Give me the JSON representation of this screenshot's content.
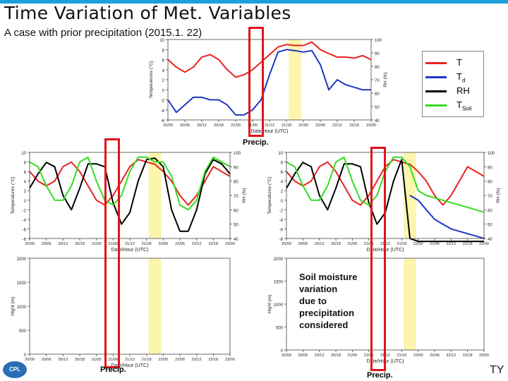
{
  "slide": {
    "title": "Time Variation of Met. Variables",
    "subtitle": "A case with prior precipitation (2015.1. 22)",
    "note": [
      "Soil moisture",
      "variation",
      "due to",
      "precipitation",
      "considered"
    ],
    "precip_label": "Precip.",
    "logo_text": "CPL",
    "corner_text": "TY"
  },
  "legend": {
    "items": [
      {
        "label": "T",
        "sub": "",
        "color": "#e8231f"
      },
      {
        "label": "T",
        "sub": "d",
        "color": "#1f36c4"
      },
      {
        "label": "RH",
        "sub": "",
        "color": "#000000"
      },
      {
        "label": "T",
        "sub": "Soil",
        "color": "#33dd22"
      }
    ]
  },
  "chart_data": [
    {
      "type": "line",
      "title": "top",
      "xlabel": "Date/Hour (UTC)",
      "ylabel": "Temperatures (°C)",
      "y2label": "RH (%)",
      "ylim": [
        -6,
        10
      ],
      "y2lim": [
        40,
        100
      ],
      "yticks": [
        -6,
        -4,
        -2,
        0,
        2,
        4,
        6,
        8,
        10
      ],
      "y2ticks": [
        40,
        50,
        60,
        70,
        80,
        90,
        100
      ],
      "xlim": [
        0,
        96
      ],
      "xticklabels": [
        "20/00",
        "20/06",
        "20/12",
        "20/18",
        "21/00",
        "21/06",
        "21/12",
        "21/18",
        "22/00",
        "22/06",
        "22/12",
        "22/18",
        "23/00"
      ],
      "precip_span": [
        57,
        63
      ],
      "series": [
        {
          "name": "T",
          "axis": "left",
          "color": "#e8231f",
          "x": [
            0,
            4,
            8,
            12,
            16,
            20,
            24,
            28,
            32,
            36,
            40,
            44,
            48,
            52,
            56,
            60,
            64,
            68,
            72,
            76,
            80,
            84,
            88,
            92,
            96
          ],
          "y": [
            6,
            4.5,
            3.5,
            4.5,
            6.5,
            7,
            6,
            4,
            2.5,
            3,
            4,
            5.5,
            7,
            8.5,
            9,
            8.8,
            8.8,
            9.5,
            8,
            7.2,
            6.5,
            6.5,
            6.3,
            6.8,
            6
          ]
        },
        {
          "name": "Td",
          "axis": "left",
          "color": "#1f36c4",
          "x": [
            0,
            4,
            8,
            12,
            16,
            20,
            24,
            28,
            32,
            36,
            40,
            44,
            48,
            52,
            56,
            60,
            64,
            68,
            72,
            76,
            80,
            84,
            88,
            92,
            96
          ],
          "y": [
            -2,
            -4.5,
            -3,
            -1.5,
            -1.5,
            -2,
            -2,
            -3,
            -5,
            -5,
            -4,
            -2,
            3,
            7.5,
            8,
            7.8,
            7.5,
            7.8,
            5,
            0,
            2,
            1,
            0.5,
            0,
            0
          ]
        }
      ]
    },
    {
      "type": "line",
      "title": "middle-left",
      "xlabel": "Date/Hour (UTC)",
      "ylabel": "Temperatures (°C)",
      "y2label": "RH (%)",
      "ylim": [
        -8,
        10
      ],
      "y2lim": [
        40,
        100
      ],
      "yticks": [
        -8,
        -6,
        -4,
        -2,
        0,
        2,
        4,
        6,
        8,
        10
      ],
      "y2ticks": [
        40,
        50,
        60,
        70,
        80,
        90,
        100
      ],
      "xlim": [
        0,
        96
      ],
      "xticklabels": [
        "20/00",
        "20/06",
        "20/12",
        "20/18",
        "21/00",
        "21/06",
        "21/12",
        "21/18",
        "22/00",
        "22/06",
        "22/12",
        "22/18",
        "23/00"
      ],
      "precip_span": [
        57,
        63
      ],
      "series": [
        {
          "name": "T",
          "axis": "left",
          "color": "#e8231f",
          "x": [
            0,
            4,
            8,
            12,
            16,
            20,
            24,
            28,
            32,
            36,
            40,
            44,
            48,
            52,
            56,
            60,
            64,
            68,
            72,
            76,
            80,
            84,
            88,
            92,
            96
          ],
          "y": [
            6,
            4,
            3,
            4,
            7,
            8,
            6,
            3,
            0,
            -1,
            1,
            4,
            7,
            8.5,
            8,
            7.5,
            6,
            4,
            1,
            -1,
            1,
            4,
            7,
            6,
            5
          ]
        },
        {
          "name": "RH",
          "axis": "right",
          "color": "#000000",
          "x": [
            0,
            4,
            8,
            12,
            16,
            20,
            24,
            28,
            32,
            36,
            40,
            44,
            48,
            52,
            56,
            60,
            64,
            68,
            72,
            76,
            80,
            84,
            88,
            92,
            96
          ],
          "y": [
            75,
            85,
            93,
            90,
            70,
            60,
            75,
            92,
            92,
            90,
            65,
            50,
            58,
            80,
            95,
            96,
            90,
            60,
            45,
            45,
            60,
            85,
            95,
            92,
            85
          ]
        },
        {
          "name": "TSoil",
          "axis": "left",
          "color": "#33dd22",
          "x": [
            0,
            4,
            8,
            12,
            16,
            20,
            24,
            28,
            32,
            36,
            40,
            44,
            48,
            52,
            56,
            60,
            64,
            68,
            72,
            76,
            80,
            84,
            88,
            92,
            96
          ],
          "y": [
            8,
            7,
            3,
            0,
            0,
            3,
            8,
            9,
            4,
            0,
            -1,
            1,
            6,
            9,
            9,
            8,
            8,
            5,
            -1,
            -2,
            0,
            6,
            9,
            8,
            7
          ]
        }
      ]
    },
    {
      "type": "line",
      "title": "middle-right",
      "xlabel": "Date/Hour (UTC)",
      "ylabel": "Temperatures (°C)",
      "y2label": "RH (%)",
      "ylim": [
        -8,
        10
      ],
      "y2lim": [
        40,
        100
      ],
      "yticks": [
        -8,
        -6,
        -4,
        -2,
        0,
        2,
        4,
        6,
        8,
        10
      ],
      "y2ticks": [
        40,
        50,
        60,
        70,
        80,
        90,
        100
      ],
      "xlim": [
        0,
        96
      ],
      "xticklabels": [
        "20/00",
        "20/06",
        "20/12",
        "20/18",
        "21/00",
        "21/06",
        "21/12",
        "21/18",
        "22/00",
        "22/06",
        "22/12",
        "22/18",
        "23/00"
      ],
      "precip_span": [
        57,
        63
      ],
      "series": [
        {
          "name": "T",
          "axis": "left",
          "color": "#e8231f",
          "x": [
            0,
            4,
            8,
            12,
            16,
            20,
            24,
            28,
            32,
            36,
            40,
            44,
            48,
            52,
            56,
            60,
            64,
            68,
            72,
            76,
            80,
            84,
            88,
            92,
            96
          ],
          "y": [
            6,
            4,
            3,
            4,
            7,
            8,
            6,
            3,
            0,
            -1,
            1,
            4,
            7,
            8.5,
            8,
            7.5,
            6,
            4,
            1,
            -1,
            1,
            4,
            7,
            6,
            5
          ]
        },
        {
          "name": "RH",
          "axis": "right",
          "color": "#000000",
          "x": [
            0,
            4,
            8,
            12,
            16,
            20,
            24,
            28,
            32,
            36,
            40,
            44,
            48,
            52,
            56,
            60,
            64,
            68,
            72,
            76,
            80,
            84,
            88,
            92,
            96
          ],
          "y": [
            75,
            85,
            93,
            90,
            70,
            60,
            75,
            92,
            92,
            90,
            65,
            50,
            58,
            80,
            95,
            40,
            38,
            38,
            38,
            38,
            38,
            38,
            38,
            38,
            38
          ]
        },
        {
          "name": "TSoil",
          "axis": "left",
          "color": "#33dd22",
          "x": [
            0,
            4,
            8,
            12,
            16,
            20,
            24,
            28,
            32,
            36,
            40,
            44,
            48,
            52,
            56,
            60,
            64,
            68,
            72,
            76,
            80,
            84,
            88,
            92,
            96
          ],
          "y": [
            8,
            7,
            3,
            0,
            0,
            3,
            8,
            9,
            4,
            0,
            -1,
            1,
            6,
            9,
            9,
            7,
            2,
            1,
            0.5,
            0,
            -0.5,
            -1,
            -1.5,
            -2,
            -2.5
          ]
        },
        {
          "name": "Td",
          "axis": "left",
          "color": "#1f36c4",
          "x": [
            60,
            64,
            68,
            72,
            76,
            80,
            84,
            88,
            92,
            96
          ],
          "y": [
            1,
            0,
            -2,
            -4,
            -5,
            -6,
            -6.5,
            -7,
            -7.5,
            -8
          ]
        }
      ]
    },
    {
      "type": "line",
      "title": "bottom-left",
      "xlabel": "Date/Hour (UTC)",
      "ylabel": "Hight (m)",
      "ylim": [
        0,
        2000
      ],
      "yticks": [
        0,
        500,
        1000,
        1500,
        2000
      ],
      "xlim": [
        0,
        96
      ],
      "xticklabels": [
        "20/00",
        "20/06",
        "20/12",
        "20/18",
        "21/00",
        "21/06",
        "21/12",
        "21/18",
        "22/00",
        "22/06",
        "22/12",
        "22/18",
        "23/00"
      ],
      "precip_span": [
        57,
        63
      ],
      "series": []
    },
    {
      "type": "line",
      "title": "bottom-right",
      "xlabel": "Date/Hour (UTC)",
      "ylabel": "Hight (m)",
      "ylim": [
        0,
        2000
      ],
      "yticks": [
        0,
        500,
        1000,
        1500,
        2000
      ],
      "xlim": [
        0,
        96
      ],
      "xticklabels": [
        "20/00",
        "20/06",
        "20/12",
        "20/18",
        "21/00",
        "21/06",
        "21/12",
        "21/18",
        "22/00",
        "22/06",
        "22/12",
        "22/18",
        "23/00"
      ],
      "precip_span": [
        57,
        63
      ],
      "series": []
    }
  ]
}
